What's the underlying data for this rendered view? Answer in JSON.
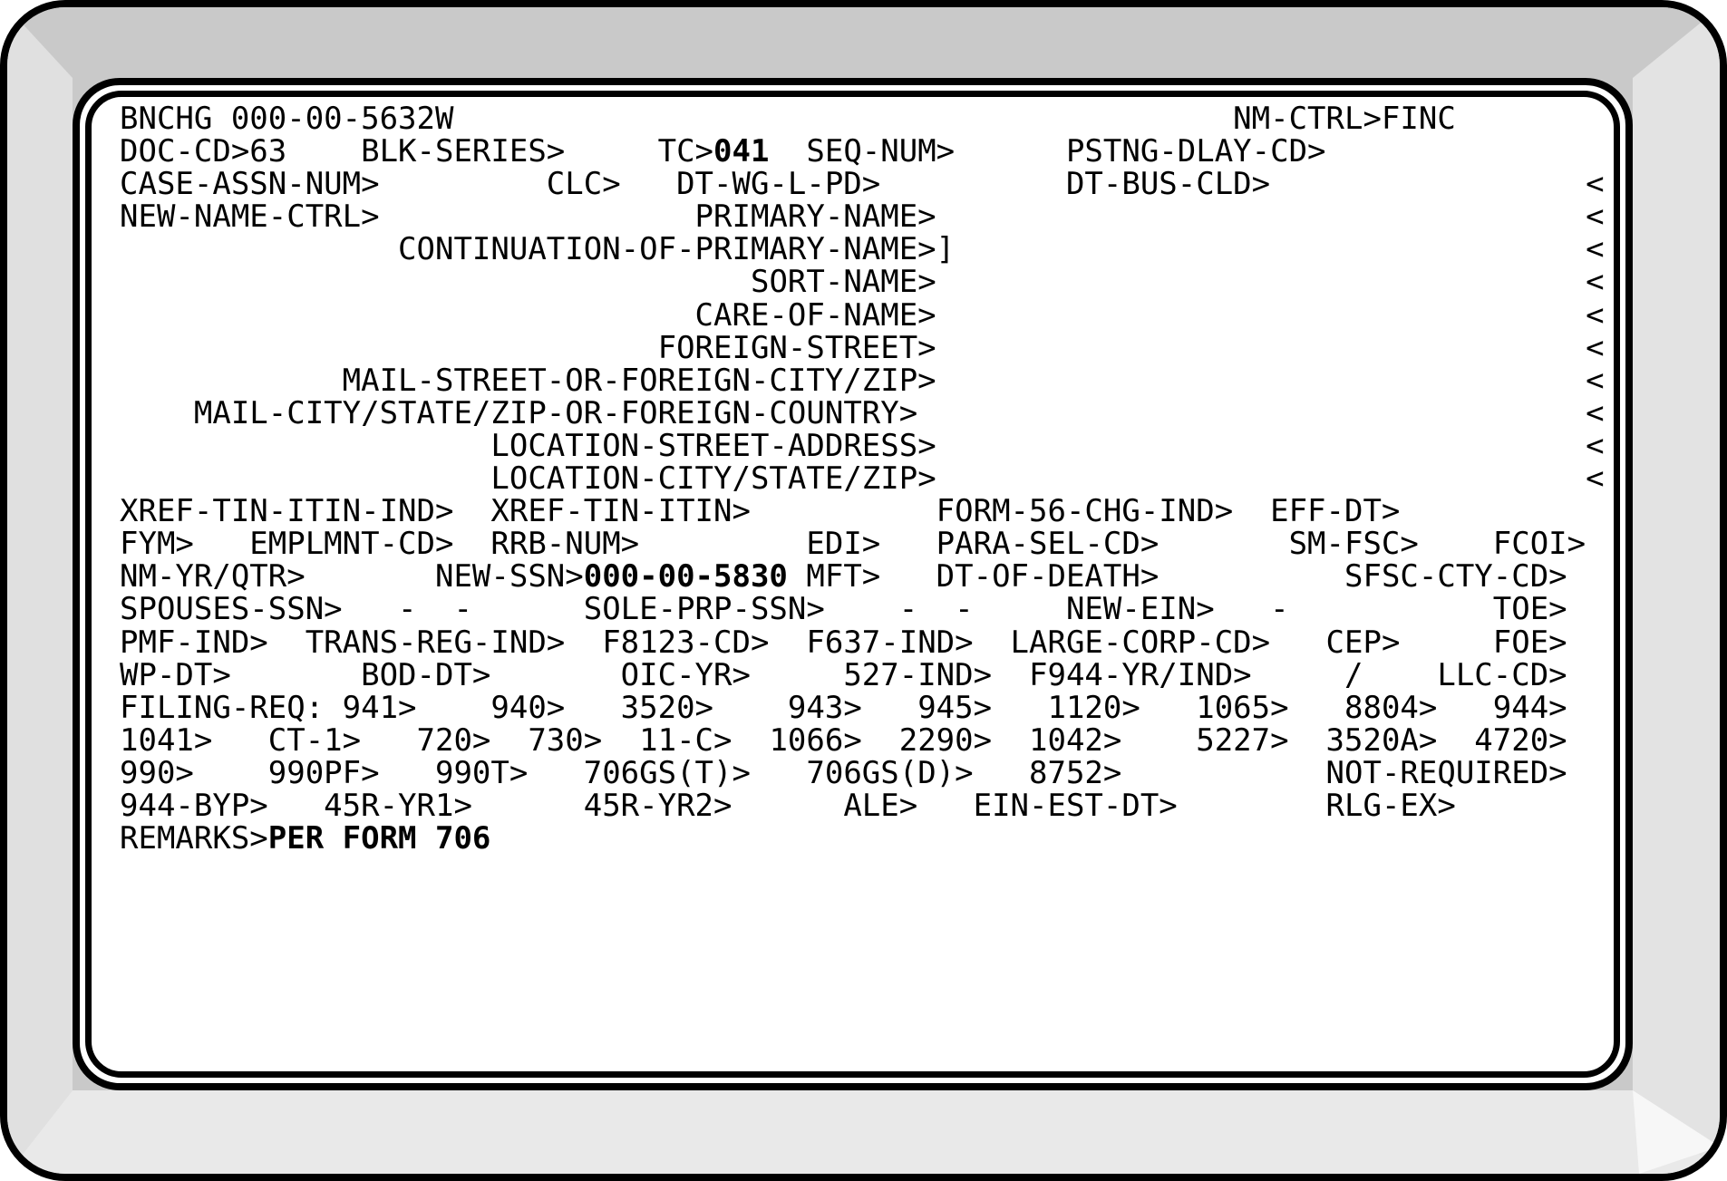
{
  "terminal": {
    "rows": [
      {
        "spans": [
          {
            "col": 0,
            "text": "BNCHG 000-00-5632W"
          },
          {
            "col": 60,
            "text": "NM-CTRL>FINC"
          }
        ]
      },
      {
        "spans": [
          {
            "col": 0,
            "text": "DOC-CD>63"
          },
          {
            "col": 13,
            "text": "BLK-SERIES>"
          },
          {
            "col": 29,
            "text": "TC>"
          },
          {
            "col": 32,
            "text": "041",
            "bold": true
          },
          {
            "col": 37,
            "text": "SEQ-NUM>"
          },
          {
            "col": 51,
            "text": "PSTNG-DLAY-CD>"
          }
        ]
      },
      {
        "spans": [
          {
            "col": 0,
            "text": "CASE-ASSN-NUM>"
          },
          {
            "col": 23,
            "text": "CLC>"
          },
          {
            "col": 30,
            "text": "DT-WG-L-PD>"
          },
          {
            "col": 51,
            "text": "DT-BUS-CLD>"
          },
          {
            "col": 79,
            "text": "<"
          }
        ]
      },
      {
        "spans": [
          {
            "col": 0,
            "text": "NEW-NAME-CTRL>"
          },
          {
            "col": 31,
            "text": "PRIMARY-NAME>"
          },
          {
            "col": 79,
            "text": "<"
          }
        ]
      },
      {
        "spans": [
          {
            "col": 15,
            "text": "CONTINUATION-OF-PRIMARY-NAME>]"
          },
          {
            "col": 79,
            "text": "<"
          }
        ]
      },
      {
        "spans": [
          {
            "col": 34,
            "text": "SORT-NAME>"
          },
          {
            "col": 79,
            "text": "<"
          }
        ]
      },
      {
        "spans": [
          {
            "col": 31,
            "text": "CARE-OF-NAME>"
          },
          {
            "col": 79,
            "text": "<"
          }
        ]
      },
      {
        "spans": [
          {
            "col": 29,
            "text": "FOREIGN-STREET>"
          },
          {
            "col": 79,
            "text": "<"
          }
        ]
      },
      {
        "spans": [
          {
            "col": 12,
            "text": "MAIL-STREET-OR-FOREIGN-CITY/ZIP>"
          },
          {
            "col": 79,
            "text": "<"
          }
        ]
      },
      {
        "spans": [
          {
            "col": 4,
            "text": "MAIL-CITY/STATE/ZIP-OR-FOREIGN-COUNTRY>"
          },
          {
            "col": 79,
            "text": "<"
          }
        ]
      },
      {
        "spans": [
          {
            "col": 20,
            "text": "LOCATION-STREET-ADDRESS>"
          },
          {
            "col": 79,
            "text": "<"
          }
        ]
      },
      {
        "spans": [
          {
            "col": 20,
            "text": "LOCATION-CITY/STATE/ZIP>"
          },
          {
            "col": 79,
            "text": "<"
          }
        ]
      },
      {
        "spans": [
          {
            "col": 0,
            "text": "XREF-TIN-ITIN-IND>"
          },
          {
            "col": 20,
            "text": "XREF-TIN-ITIN>"
          },
          {
            "col": 44,
            "text": "FORM-56-CHG-IND>"
          },
          {
            "col": 62,
            "text": "EFF-DT>"
          }
        ]
      },
      {
        "spans": [
          {
            "col": 0,
            "text": "FYM>"
          },
          {
            "col": 7,
            "text": "EMPLMNT-CD>"
          },
          {
            "col": 20,
            "text": "RRB-NUM>"
          },
          {
            "col": 37,
            "text": "EDI>"
          },
          {
            "col": 44,
            "text": "PARA-SEL-CD>"
          },
          {
            "col": 63,
            "text": "SM-FSC>"
          },
          {
            "col": 74,
            "text": "FCOI>"
          }
        ]
      },
      {
        "spans": [
          {
            "col": 0,
            "text": "NM-YR/QTR>"
          },
          {
            "col": 17,
            "text": "NEW-SSN>"
          },
          {
            "col": 25,
            "text": "000-00-5830",
            "bold": true
          },
          {
            "col": 37,
            "text": "MFT>"
          },
          {
            "col": 44,
            "text": "DT-OF-DEATH>"
          },
          {
            "col": 66,
            "text": "SFSC-CTY-CD>"
          }
        ]
      },
      {
        "spans": [
          {
            "col": 0,
            "text": "SPOUSES-SSN>"
          },
          {
            "col": 15,
            "text": "-"
          },
          {
            "col": 18,
            "text": "-"
          },
          {
            "col": 25,
            "text": "SOLE-PRP-SSN>"
          },
          {
            "col": 42,
            "text": "-"
          },
          {
            "col": 45,
            "text": "-"
          },
          {
            "col": 51,
            "text": "NEW-EIN>"
          },
          {
            "col": 62,
            "text": "-"
          },
          {
            "col": 74,
            "text": "TOE>"
          }
        ]
      },
      {
        "spans": [
          {
            "col": 0,
            "text": "PMF-IND>"
          },
          {
            "col": 10,
            "text": "TRANS-REG-IND>"
          },
          {
            "col": 26,
            "text": "F8123-CD>"
          },
          {
            "col": 37,
            "text": "F637-IND>"
          },
          {
            "col": 48,
            "text": "LARGE-CORP-CD>"
          },
          {
            "col": 65,
            "text": "CEP>"
          },
          {
            "col": 74,
            "text": "FOE>"
          }
        ]
      },
      {
        "spans": [
          {
            "col": 0,
            "text": "WP-DT>"
          },
          {
            "col": 13,
            "text": "BOD-DT>"
          },
          {
            "col": 27,
            "text": "OIC-YR>"
          },
          {
            "col": 39,
            "text": "527-IND>"
          },
          {
            "col": 49,
            "text": "F944-YR/IND>"
          },
          {
            "col": 66,
            "text": "/"
          },
          {
            "col": 71,
            "text": "LLC-CD>"
          }
        ]
      },
      {
        "spans": [
          {
            "col": 0,
            "text": "FILING-REQ: 941>"
          },
          {
            "col": 20,
            "text": "940>"
          },
          {
            "col": 27,
            "text": "3520>"
          },
          {
            "col": 36,
            "text": "943>"
          },
          {
            "col": 43,
            "text": "945>"
          },
          {
            "col": 50,
            "text": "1120>"
          },
          {
            "col": 58,
            "text": "1065>"
          },
          {
            "col": 66,
            "text": "8804>"
          },
          {
            "col": 74,
            "text": "944>"
          }
        ]
      },
      {
        "spans": [
          {
            "col": 0,
            "text": "1041>"
          },
          {
            "col": 8,
            "text": "CT-1>"
          },
          {
            "col": 16,
            "text": "720>"
          },
          {
            "col": 22,
            "text": "730>"
          },
          {
            "col": 28,
            "text": "11-C>"
          },
          {
            "col": 35,
            "text": "1066>"
          },
          {
            "col": 42,
            "text": "2290>"
          },
          {
            "col": 49,
            "text": "1042>"
          },
          {
            "col": 58,
            "text": "5227>"
          },
          {
            "col": 65,
            "text": "3520A>"
          },
          {
            "col": 73,
            "text": "4720>"
          }
        ]
      },
      {
        "spans": [
          {
            "col": 0,
            "text": "990>"
          },
          {
            "col": 8,
            "text": "990PF>"
          },
          {
            "col": 17,
            "text": "990T>"
          },
          {
            "col": 25,
            "text": "706GS(T)>"
          },
          {
            "col": 37,
            "text": "706GS(D)>"
          },
          {
            "col": 49,
            "text": "8752>"
          },
          {
            "col": 65,
            "text": "NOT-REQUIRED>"
          }
        ]
      },
      {
        "spans": [
          {
            "col": 0,
            "text": "944-BYP>"
          },
          {
            "col": 11,
            "text": "45R-YR1>"
          },
          {
            "col": 25,
            "text": "45R-YR2>"
          },
          {
            "col": 39,
            "text": "ALE>"
          },
          {
            "col": 46,
            "text": "EIN-EST-DT>"
          },
          {
            "col": 65,
            "text": "RLG-EX>"
          }
        ]
      },
      {
        "spans": [
          {
            "col": 0,
            "text": "REMARKS>"
          },
          {
            "col": 8,
            "text": "PER FORM 706",
            "bold": true
          }
        ]
      }
    ]
  },
  "colors": {
    "page_bg": "#ffffff",
    "screen_bg": "#ffffff",
    "text": "#000000",
    "border": "#000000",
    "bezel_top": "#c9c9c9",
    "bezel_left": "#e0e0e0",
    "bezel_right": "#e3e3e3",
    "bezel_bottom": "#e9e9e9",
    "bezel_corner_highlight": "#f7f7f7"
  }
}
